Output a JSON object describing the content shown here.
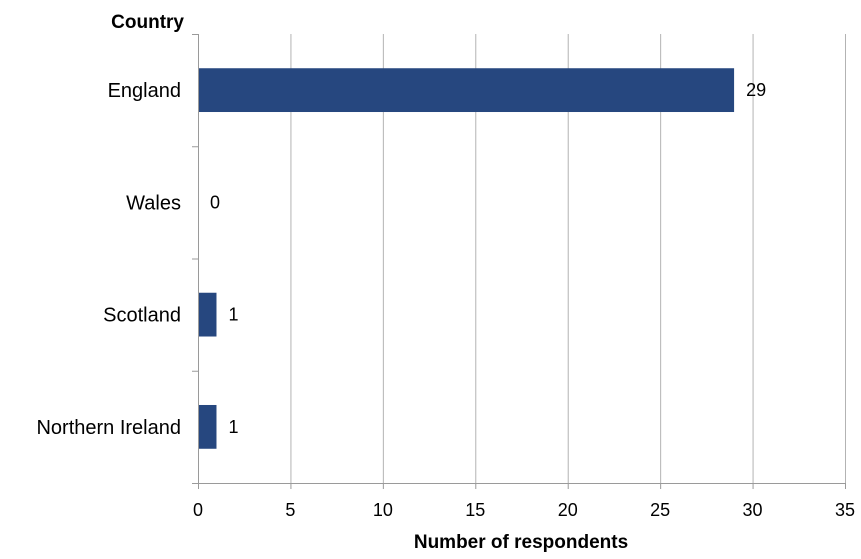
{
  "chart_data": {
    "type": "bar",
    "orientation": "horizontal",
    "categories": [
      "England",
      "Wales",
      "Scotland",
      "Northern Ireland"
    ],
    "values": [
      29,
      0,
      1,
      1
    ],
    "data_labels": [
      "29",
      "0",
      "1",
      "1"
    ],
    "title": "",
    "xlabel": "Number of respondents",
    "ylabel": "Country",
    "xlim": [
      0,
      35
    ],
    "x_ticks": [
      0,
      5,
      10,
      15,
      20,
      25,
      30,
      35
    ],
    "x_tick_labels": [
      "0",
      "5",
      "10",
      "15",
      "20",
      "25",
      "30",
      "35"
    ],
    "grid": "vertical",
    "legend": "none",
    "bar_color": "#26477f"
  }
}
